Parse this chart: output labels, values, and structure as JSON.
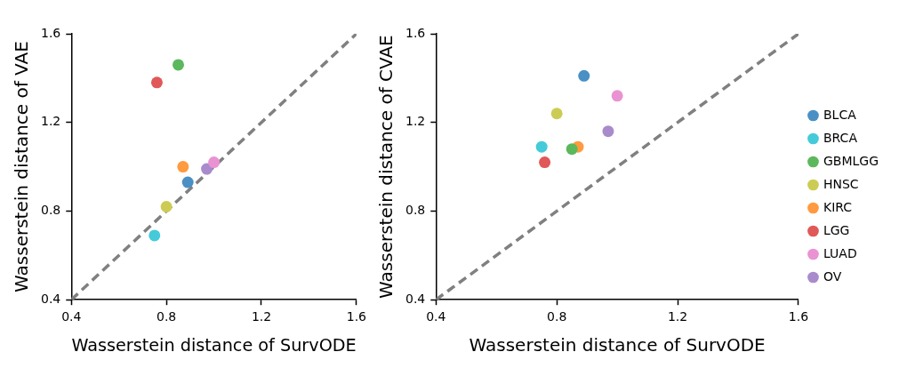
{
  "chart_data": [
    {
      "type": "scatter",
      "xlabel": "Wasserstein distance of SurvODE",
      "ylabel": "Wasserstein distance of VAE",
      "xlim": [
        0.4,
        1.6
      ],
      "ylim": [
        0.4,
        1.6
      ],
      "xticks": [
        0.4,
        0.8,
        1.2,
        1.6
      ],
      "yticks": [
        0.4,
        0.8,
        1.2,
        1.6
      ],
      "grid": false,
      "legend": false,
      "marker": "circle",
      "series": [
        {
          "type": "line",
          "color": "#808080",
          "line_style": "dashed",
          "marker": "none",
          "x": [
            0.4,
            1.6
          ],
          "values": [
            0.4,
            1.6
          ]
        },
        {
          "color": "#4a90c4",
          "x": [
            0.89
          ],
          "values": [
            0.93
          ]
        },
        {
          "color": "#45cad9",
          "x": [
            0.75
          ],
          "values": [
            0.69
          ]
        },
        {
          "color": "#5cb85c",
          "x": [
            0.85
          ],
          "values": [
            1.46
          ]
        },
        {
          "color": "#cccc55",
          "x": [
            0.8
          ],
          "values": [
            0.82
          ]
        },
        {
          "color": "#ff9a40",
          "x": [
            0.87
          ],
          "values": [
            1.0
          ]
        },
        {
          "color": "#e05858",
          "x": [
            0.76
          ],
          "values": [
            1.38
          ]
        },
        {
          "color": "#e993d2",
          "x": [
            1.0
          ],
          "values": [
            1.02
          ]
        },
        {
          "color": "#a98bcc",
          "x": [
            0.97
          ],
          "values": [
            0.99
          ]
        }
      ]
    },
    {
      "type": "scatter",
      "xlabel": "Wasserstein distance of SurvODE",
      "ylabel": "Wasserstein distance of CVAE",
      "xlim": [
        0.4,
        1.6
      ],
      "ylim": [
        0.4,
        1.6
      ],
      "xticks": [
        0.4,
        0.8,
        1.2,
        1.6
      ],
      "yticks": [
        0.4,
        0.8,
        1.2,
        1.6
      ],
      "grid": false,
      "legend": "right",
      "marker": "circle",
      "series": [
        {
          "type": "line",
          "color": "#808080",
          "line_style": "dashed",
          "marker": "none",
          "x": [
            0.4,
            1.6
          ],
          "values": [
            0.4,
            1.6
          ]
        },
        {
          "name": "BLCA",
          "color": "#4a90c4",
          "x": [
            0.89
          ],
          "values": [
            1.41
          ]
        },
        {
          "name": "BRCA",
          "color": "#45cad9",
          "x": [
            0.75
          ],
          "values": [
            1.09
          ]
        },
        {
          "name": "GBMLGG",
          "color": "#5cb85c",
          "x": [
            0.85
          ],
          "values": [
            1.08
          ]
        },
        {
          "name": "HNSC",
          "color": "#cccc55",
          "x": [
            0.8
          ],
          "values": [
            1.24
          ]
        },
        {
          "name": "KIRC",
          "color": "#ff9a40",
          "x": [
            0.87
          ],
          "values": [
            1.09
          ]
        },
        {
          "name": "LGG",
          "color": "#e05858",
          "x": [
            0.76
          ],
          "values": [
            1.02
          ]
        },
        {
          "name": "LUAD",
          "color": "#e993d2",
          "x": [
            1.0
          ],
          "values": [
            1.32
          ]
        },
        {
          "name": "OV",
          "color": "#a98bcc",
          "x": [
            0.97
          ],
          "values": [
            1.16
          ]
        }
      ]
    }
  ]
}
